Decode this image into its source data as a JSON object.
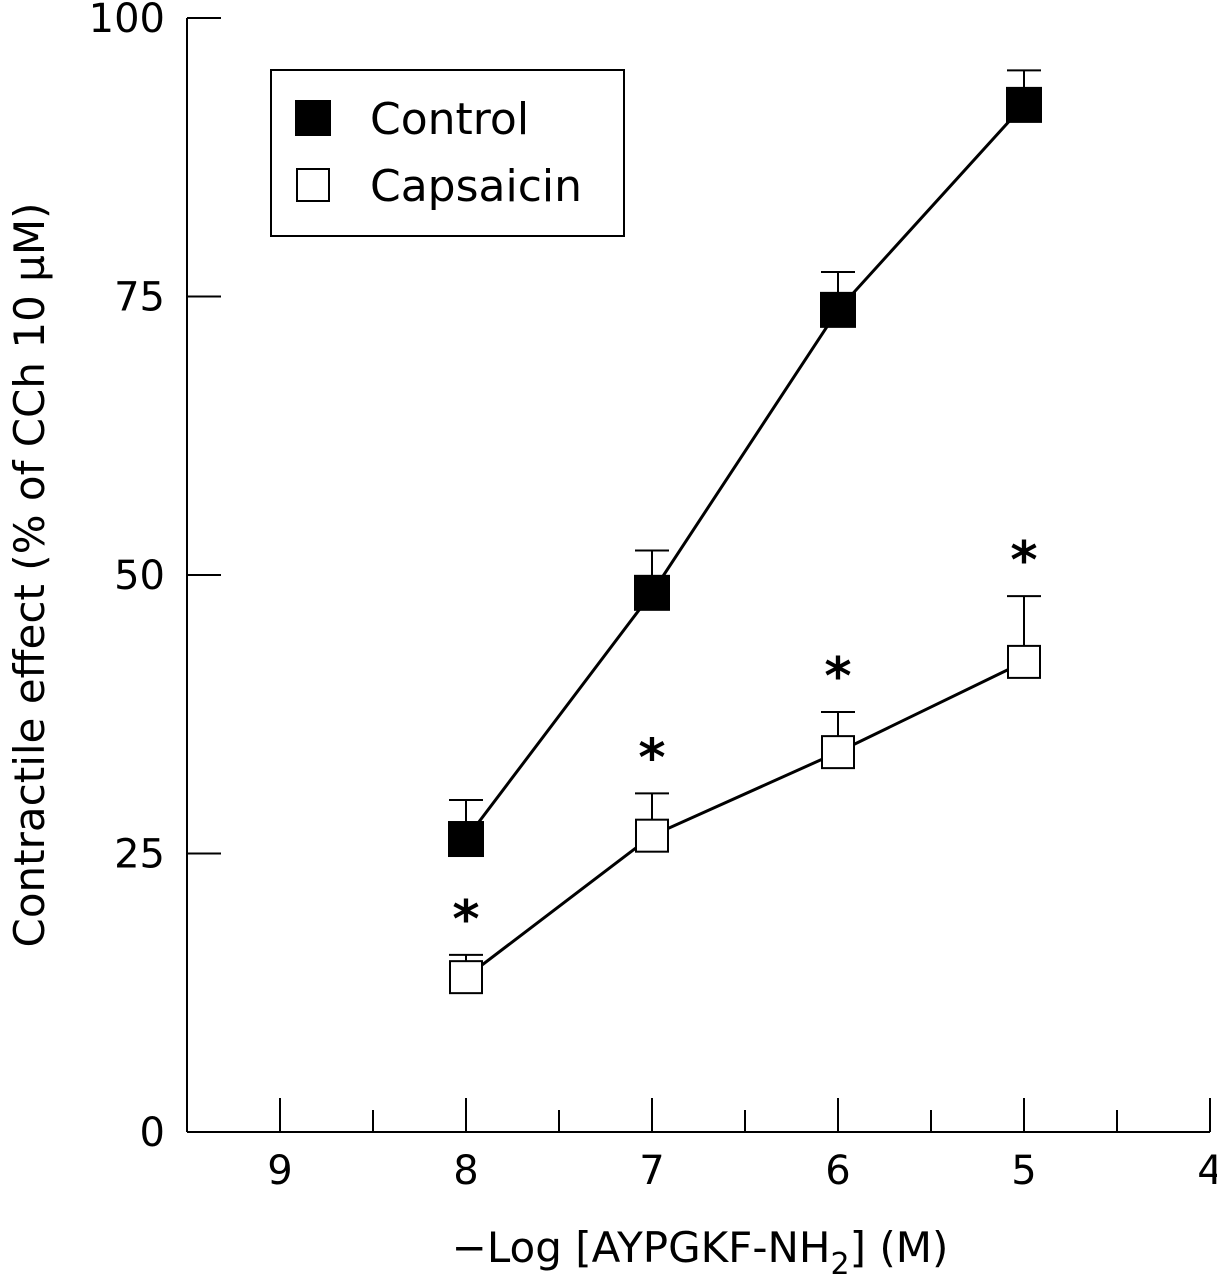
{
  "chart_data": {
    "type": "line",
    "xlabel_main": "−Log [AYPGKF-NH",
    "xlabel_sub": "2",
    "xlabel_tail": "] (M)",
    "ylabel": "Contractile effect (% of CCh 10 µM)",
    "xlim": [
      9.5,
      4
    ],
    "ylim": [
      0,
      100
    ],
    "x_ticks": [
      9,
      8,
      7,
      6,
      5,
      4
    ],
    "x_tick_labels": [
      "9",
      "8",
      "7",
      "6",
      "5",
      "4"
    ],
    "y_ticks": [
      0,
      25,
      50,
      75,
      100
    ],
    "y_tick_labels": [
      "0",
      "25",
      "50",
      "75",
      "100"
    ],
    "x": [
      8,
      7,
      6,
      5
    ],
    "legend_position": "top-left",
    "series": [
      {
        "name": "Control",
        "marker": "filled-square",
        "color": "#000000",
        "values": [
          26.3,
          48.4,
          73.8,
          92.2
        ],
        "errors": [
          3.5,
          3.8,
          3.4,
          3.1
        ],
        "significance": [
          "",
          "",
          "",
          ""
        ]
      },
      {
        "name": "Capsaicin",
        "marker": "open-square",
        "color": "#000000",
        "values": [
          13.9,
          26.6,
          34.1,
          42.2
        ],
        "errors": [
          2.0,
          3.8,
          3.6,
          5.9
        ],
        "significance": [
          "*",
          "*",
          "*",
          "*"
        ]
      }
    ]
  }
}
